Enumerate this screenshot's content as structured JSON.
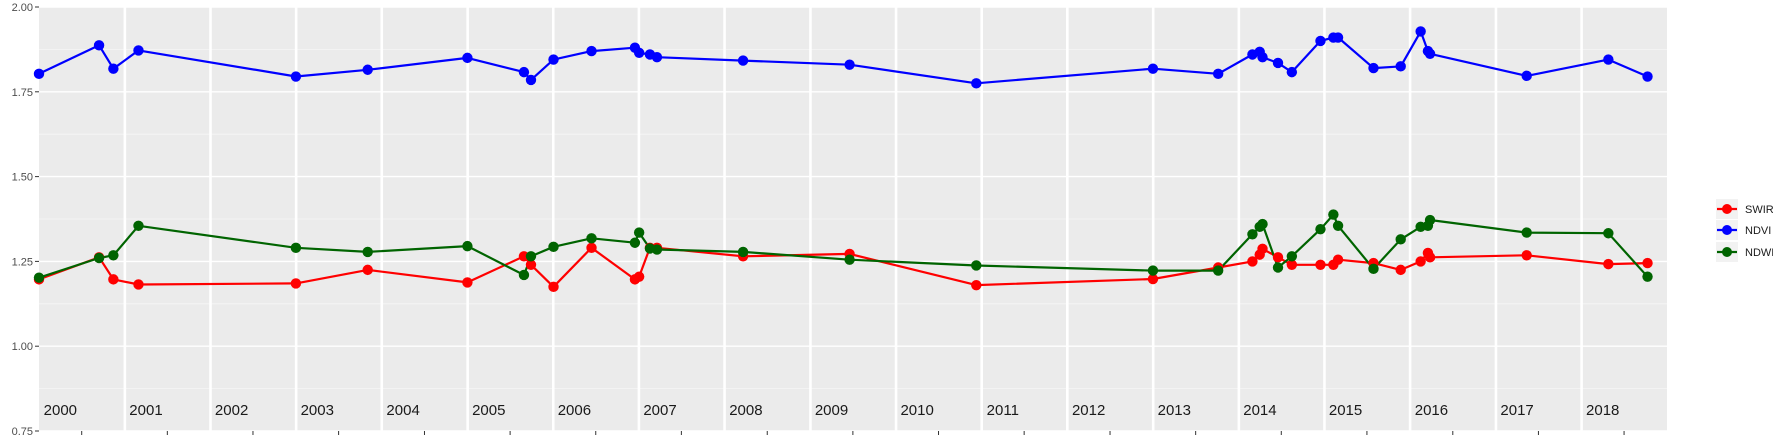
{
  "chart_data": {
    "type": "line",
    "title": "",
    "xlabel": "",
    "ylabel": "",
    "x_range": [
      "2000-01-01",
      "2018-12-31"
    ],
    "ylim": [
      0.75,
      2.0
    ],
    "y_ticks": [
      "0.75",
      "1.00",
      "1.25",
      "1.50",
      "1.75",
      "2.00"
    ],
    "y_tick_values": [
      0.75,
      1.0,
      1.25,
      1.5,
      1.75,
      2.0
    ],
    "year_labels": [
      "2000",
      "2001",
      "2002",
      "2003",
      "2004",
      "2005",
      "2006",
      "2007",
      "2008",
      "2009",
      "2010",
      "2011",
      "2012",
      "2013",
      "2014",
      "2015",
      "2016",
      "2017",
      "2018"
    ],
    "grid": true,
    "legend_position": "right",
    "x_dates": [
      "2000-01-01",
      "2000-09-13",
      "2000-11-13",
      "2001-02-28",
      "2002-12-31",
      "2003-11-02",
      "2004-12-31",
      "2005-08-29",
      "2005-09-28",
      "2006-01-02",
      "2006-06-13",
      "2006-12-15",
      "2007-01-02",
      "2007-02-17",
      "2007-03-19",
      "2008-03-20",
      "2009-06-17",
      "2010-12-09",
      "2012-12-31",
      "2013-10-05",
      "2014-02-28",
      "2014-03-31",
      "2014-04-12",
      "2014-06-17",
      "2014-08-15",
      "2014-12-15",
      "2015-02-08",
      "2015-02-28",
      "2015-07-29",
      "2015-11-22",
      "2016-02-15",
      "2016-03-17",
      "2016-03-26",
      "2017-05-12",
      "2018-04-25",
      "2018-10-09"
    ],
    "series": [
      {
        "name": "SWIR",
        "color": "#ff0000",
        "values": [
          1.197,
          1.262,
          1.197,
          1.182,
          1.185,
          1.225,
          1.188,
          1.265,
          1.24,
          1.175,
          1.29,
          1.197,
          1.205,
          1.29,
          1.29,
          1.265,
          1.272,
          1.18,
          1.198,
          1.232,
          1.25,
          1.27,
          1.287,
          1.262,
          1.24,
          1.24,
          1.24,
          1.255,
          1.245,
          1.225,
          1.25,
          1.275,
          1.262,
          1.268,
          1.242,
          1.245
        ]
      },
      {
        "name": "NDVI",
        "color": "#0000ff",
        "values": [
          1.803,
          1.887,
          1.818,
          1.872,
          1.795,
          1.815,
          1.85,
          1.808,
          1.785,
          1.845,
          1.87,
          1.88,
          1.865,
          1.86,
          1.852,
          1.842,
          1.83,
          1.775,
          1.818,
          1.803,
          1.86,
          1.868,
          1.852,
          1.835,
          1.808,
          1.9,
          1.91,
          1.91,
          1.82,
          1.825,
          1.928,
          1.87,
          1.862,
          1.797,
          1.845,
          1.795
        ]
      },
      {
        "name": "NDWI",
        "color": "#006400",
        "values": [
          1.202,
          1.26,
          1.268,
          1.355,
          1.29,
          1.278,
          1.295,
          1.21,
          1.265,
          1.293,
          1.318,
          1.305,
          1.335,
          1.288,
          1.285,
          1.278,
          1.255,
          1.238,
          1.223,
          1.223,
          1.33,
          1.352,
          1.36,
          1.232,
          1.265,
          1.345,
          1.388,
          1.355,
          1.228,
          1.315,
          1.352,
          1.355,
          1.372,
          1.335,
          1.333,
          1.205
        ]
      }
    ]
  }
}
